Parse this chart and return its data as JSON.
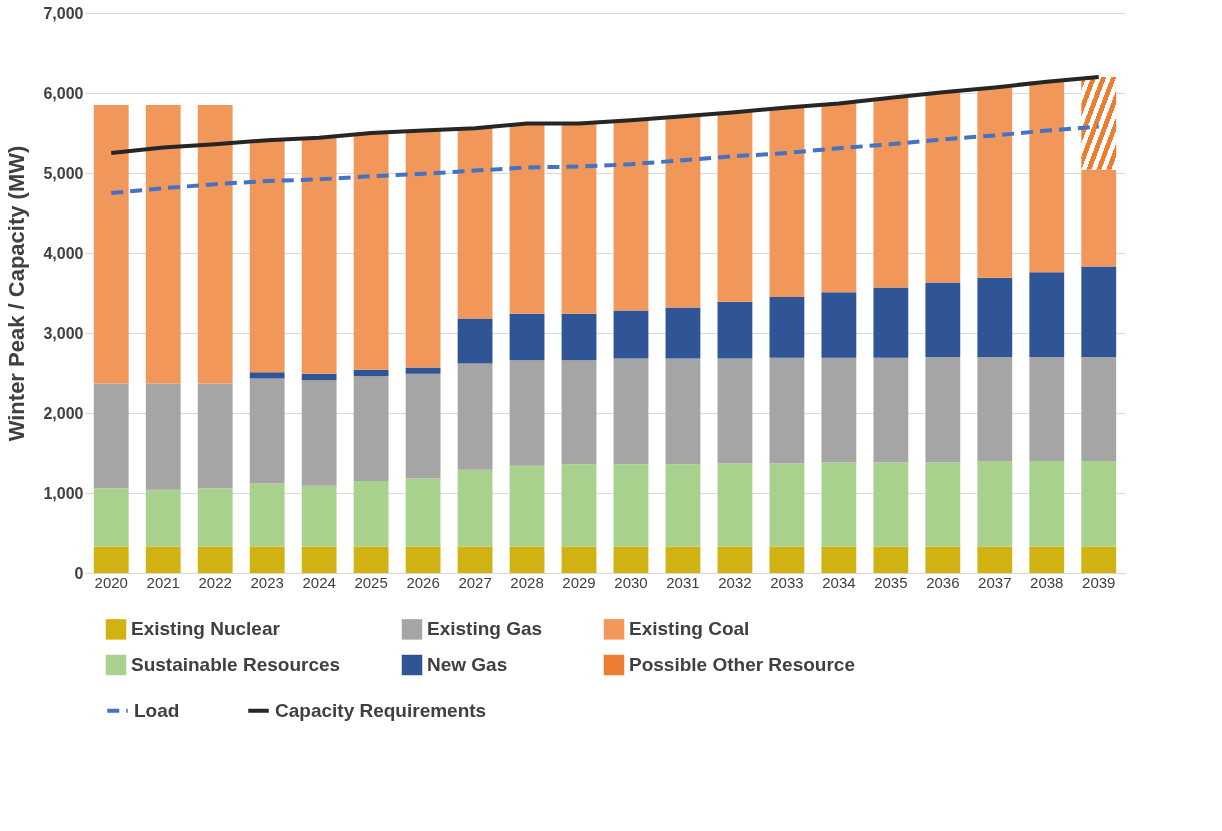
{
  "chart_data": {
    "type": "bar",
    "stacked": true,
    "ylabel": "Winter Peak / Capacity (MW)",
    "categories": [
      "2020",
      "2021",
      "2022",
      "2023",
      "2024",
      "2025",
      "2026",
      "2027",
      "2028",
      "2029",
      "2030",
      "2031",
      "2032",
      "2033",
      "2034",
      "2035",
      "2036",
      "2037",
      "2038",
      "2039"
    ],
    "ylim": [
      0,
      7000
    ],
    "yticks": [
      0,
      {
        "value": 1000,
        "label": "1,000"
      },
      {
        "value": 2000,
        "label": "2,000"
      },
      {
        "value": 3000,
        "label": "3,000"
      },
      {
        "value": 4000,
        "label": "4,000"
      },
      {
        "value": 5000,
        "label": "5,000"
      },
      {
        "value": 6000,
        "label": "6,000"
      },
      {
        "value": 7000,
        "label": "7,000"
      }
    ],
    "grid": "y",
    "legend": "bottom",
    "series": [
      {
        "name": "Existing Nuclear",
        "type": "bar",
        "color": "#d1b213",
        "values": [
          330,
          330,
          330,
          330,
          330,
          330,
          330,
          330,
          330,
          330,
          330,
          330,
          330,
          330,
          330,
          330,
          330,
          330,
          330,
          330
        ]
      },
      {
        "name": "Sustainable Resources",
        "type": "bar",
        "color": "#a9d18e",
        "values": [
          730,
          710,
          730,
          790,
          760,
          820,
          850,
          960,
          1010,
          1030,
          1030,
          1030,
          1040,
          1040,
          1050,
          1050,
          1050,
          1070,
          1070,
          1070
        ]
      },
      {
        "name": "Existing Gas",
        "type": "bar",
        "color": "#a5a5a5",
        "values": [
          1310,
          1330,
          1310,
          1310,
          1320,
          1310,
          1310,
          1330,
          1320,
          1300,
          1320,
          1320,
          1310,
          1320,
          1310,
          1310,
          1320,
          1300,
          1300,
          1300
        ]
      },
      {
        "name": "New Gas",
        "type": "bar",
        "color": "#2f5597",
        "values": [
          null,
          null,
          null,
          80,
          80,
          80,
          80,
          560,
          580,
          580,
          600,
          640,
          710,
          760,
          820,
          880,
          930,
          990,
          1060,
          1130
        ]
      },
      {
        "name": "Existing Coal",
        "type": "bar",
        "color": "#f1975a",
        "values": [
          3480,
          3480,
          3480,
          2900,
          2950,
          2960,
          2960,
          2380,
          2380,
          2380,
          2380,
          2390,
          2370,
          2370,
          2360,
          2370,
          2380,
          2380,
          2380,
          1210
        ]
      },
      {
        "name": "Possible Other Resource",
        "type": "bar",
        "color": "#ed7d31",
        "values": [
          null,
          null,
          null,
          null,
          null,
          null,
          null,
          null,
          null,
          null,
          null,
          null,
          null,
          null,
          null,
          null,
          null,
          null,
          null,
          1160
        ]
      },
      {
        "name": "Load",
        "type": "line",
        "line_style": "dashed",
        "color": "#4472c4",
        "values": [
          4750,
          4810,
          4860,
          4900,
          4920,
          4960,
          4990,
          5030,
          5070,
          5080,
          5110,
          5160,
          5210,
          5250,
          5310,
          5360,
          5420,
          5470,
          5530,
          5580
        ]
      },
      {
        "name": "Capacity Requirements",
        "type": "line",
        "line_style": "solid",
        "color": "#262626",
        "values": [
          5250,
          5320,
          5360,
          5410,
          5440,
          5500,
          5530,
          5560,
          5620,
          5620,
          5660,
          5710,
          5760,
          5820,
          5870,
          5940,
          6010,
          6070,
          6140,
          6200
        ]
      }
    ]
  }
}
